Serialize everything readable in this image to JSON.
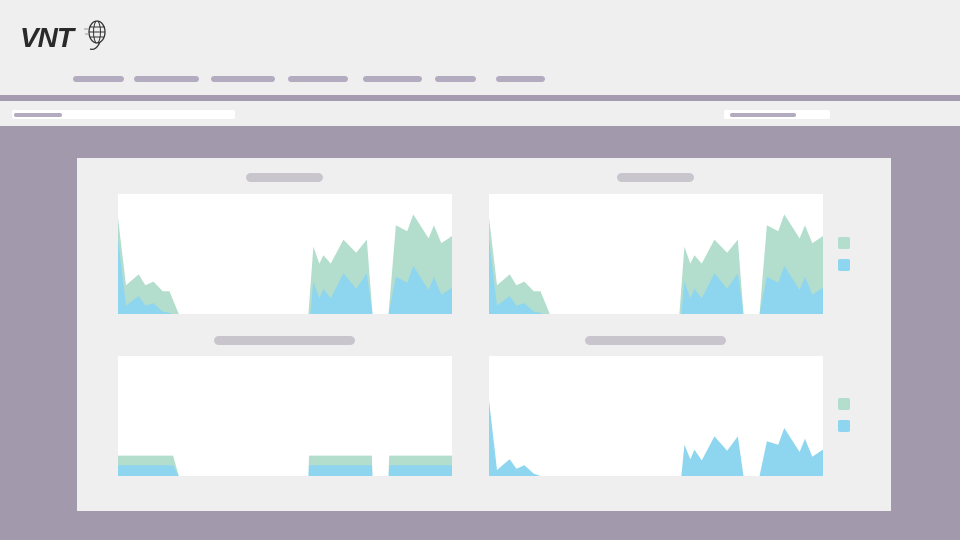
{
  "brand": {
    "logo_text": "VNT",
    "logo_icon": "globe-icon"
  },
  "nav": {
    "items": [
      {
        "label": ""
      },
      {
        "label": ""
      },
      {
        "label": ""
      },
      {
        "label": ""
      },
      {
        "label": ""
      },
      {
        "label": ""
      },
      {
        "label": ""
      }
    ]
  },
  "colors": {
    "series_green": "#b3ddcd",
    "series_blue": "#8ed5ef",
    "accent": "#a59bb0",
    "background": "#a299ad"
  },
  "chart_data": [
    {
      "type": "area",
      "title": "",
      "xlim": [
        0,
        100
      ],
      "ylim": [
        0,
        100
      ],
      "grid": false,
      "legend": "right",
      "series": [
        {
          "color": "#b3ddcd",
          "segments": [
            [
              [
                0,
                80
              ],
              [
                2.4,
                24
              ],
              [
                6.2,
                33
              ],
              [
                8.2,
                24
              ],
              [
                10.6,
                27
              ],
              [
                13.4,
                19
              ],
              [
                15.4,
                19
              ],
              [
                18.2,
                0
              ]
            ],
            [
              [
                57,
                0
              ],
              [
                58.5,
                56
              ],
              [
                60.3,
                42
              ],
              [
                61.5,
                49
              ],
              [
                63.7,
                42
              ],
              [
                67.5,
                62
              ],
              [
                71.3,
                51
              ],
              [
                74.5,
                62
              ],
              [
                76.2,
                0
              ]
            ],
            [
              [
                81,
                0
              ],
              [
                83.2,
                74
              ],
              [
                86.6,
                69
              ],
              [
                88.4,
                83
              ],
              [
                93,
                63
              ],
              [
                94.6,
                74
              ],
              [
                96.8,
                59
              ],
              [
                100,
                65
              ]
            ]
          ]
        },
        {
          "color": "#8ed5ef",
          "segments": [
            [
              [
                0,
                62
              ],
              [
                2.4,
                7
              ],
              [
                6.2,
                15
              ],
              [
                8.2,
                7
              ],
              [
                10.6,
                9
              ],
              [
                13.4,
                2
              ],
              [
                15.4,
                1
              ],
              [
                16,
                0
              ]
            ],
            [
              [
                57.6,
                0
              ],
              [
                58.5,
                27
              ],
              [
                60.3,
                13
              ],
              [
                61.5,
                21
              ],
              [
                63.7,
                13
              ],
              [
                67.5,
                34
              ],
              [
                71.3,
                21
              ],
              [
                74.5,
                34
              ],
              [
                76.2,
                0
              ]
            ],
            [
              [
                81,
                0
              ],
              [
                83.2,
                31
              ],
              [
                86.6,
                26
              ],
              [
                88.4,
                40
              ],
              [
                93,
                20
              ],
              [
                94.6,
                31
              ],
              [
                96.8,
                16
              ],
              [
                100,
                22
              ]
            ]
          ]
        }
      ]
    },
    {
      "type": "area",
      "title": "",
      "xlim": [
        0,
        100
      ],
      "ylim": [
        0,
        100
      ],
      "grid": false,
      "legend": "right",
      "series": [
        {
          "color": "#b3ddcd",
          "segments": [
            [
              [
                0,
                80
              ],
              [
                2.4,
                24
              ],
              [
                6.2,
                33
              ],
              [
                8.2,
                24
              ],
              [
                10.6,
                27
              ],
              [
                13.4,
                19
              ],
              [
                15.4,
                19
              ],
              [
                18.2,
                0
              ]
            ],
            [
              [
                57,
                0
              ],
              [
                58.5,
                56
              ],
              [
                60.3,
                42
              ],
              [
                61.5,
                49
              ],
              [
                63.7,
                42
              ],
              [
                67.5,
                62
              ],
              [
                71.3,
                51
              ],
              [
                74.5,
                62
              ],
              [
                76.2,
                0
              ]
            ],
            [
              [
                81,
                0
              ],
              [
                83.2,
                74
              ],
              [
                86.6,
                69
              ],
              [
                88.4,
                83
              ],
              [
                93,
                63
              ],
              [
                94.6,
                74
              ],
              [
                96.8,
                59
              ],
              [
                100,
                65
              ]
            ]
          ]
        },
        {
          "color": "#8ed5ef",
          "segments": [
            [
              [
                0,
                62
              ],
              [
                2.4,
                7
              ],
              [
                6.2,
                15
              ],
              [
                8.2,
                7
              ],
              [
                10.6,
                9
              ],
              [
                13.4,
                2
              ],
              [
                15.4,
                1
              ],
              [
                16,
                0
              ]
            ],
            [
              [
                57.6,
                0
              ],
              [
                58.5,
                27
              ],
              [
                60.3,
                13
              ],
              [
                61.5,
                21
              ],
              [
                63.7,
                13
              ],
              [
                67.5,
                34
              ],
              [
                71.3,
                21
              ],
              [
                74.5,
                34
              ],
              [
                76.2,
                0
              ]
            ],
            [
              [
                81,
                0
              ],
              [
                83.2,
                31
              ],
              [
                86.6,
                26
              ],
              [
                88.4,
                40
              ],
              [
                93,
                20
              ],
              [
                94.6,
                31
              ],
              [
                96.8,
                16
              ],
              [
                100,
                22
              ]
            ]
          ]
        }
      ]
    },
    {
      "type": "area",
      "title": "",
      "xlim": [
        0,
        100
      ],
      "ylim": [
        0,
        100
      ],
      "grid": false,
      "series": [
        {
          "color": "#b3ddcd",
          "segments": [
            [
              [
                0,
                17
              ],
              [
                16.5,
                17
              ],
              [
                18.2,
                0
              ]
            ],
            [
              [
                57,
                0
              ],
              [
                57.2,
                17
              ],
              [
                76,
                17
              ],
              [
                76.2,
                0
              ]
            ],
            [
              [
                81,
                0
              ],
              [
                81.2,
                17
              ],
              [
                100,
                17
              ]
            ]
          ]
        },
        {
          "color": "#8ed5ef",
          "segments": [
            [
              [
                0,
                9
              ],
              [
                16.5,
                9
              ],
              [
                18.2,
                0
              ]
            ],
            [
              [
                57,
                0
              ],
              [
                57.2,
                9
              ],
              [
                76,
                9
              ],
              [
                76.2,
                0
              ]
            ],
            [
              [
                81,
                0
              ],
              [
                81.2,
                9
              ],
              [
                100,
                9
              ]
            ]
          ]
        }
      ]
    },
    {
      "type": "area",
      "title": "",
      "xlim": [
        0,
        100
      ],
      "ylim": [
        0,
        100
      ],
      "grid": false,
      "legend": "right",
      "series": [
        {
          "color": "#8ed5ef",
          "segments": [
            [
              [
                0,
                63
              ],
              [
                2.4,
                5
              ],
              [
                6.2,
                14
              ],
              [
                8.2,
                6
              ],
              [
                10.6,
                9
              ],
              [
                13.4,
                2
              ],
              [
                15.4,
                0
              ]
            ],
            [
              [
                57.6,
                0
              ],
              [
                58.5,
                26
              ],
              [
                60.3,
                14
              ],
              [
                61.5,
                22
              ],
              [
                63.7,
                13
              ],
              [
                67.5,
                33
              ],
              [
                71.3,
                21
              ],
              [
                74.5,
                33
              ],
              [
                76.2,
                0
              ]
            ],
            [
              [
                81,
                0
              ],
              [
                83.2,
                29
              ],
              [
                86.6,
                26
              ],
              [
                88.4,
                40
              ],
              [
                93,
                20
              ],
              [
                94.6,
                31
              ],
              [
                96.8,
                16
              ],
              [
                100,
                22
              ]
            ]
          ]
        }
      ]
    }
  ]
}
